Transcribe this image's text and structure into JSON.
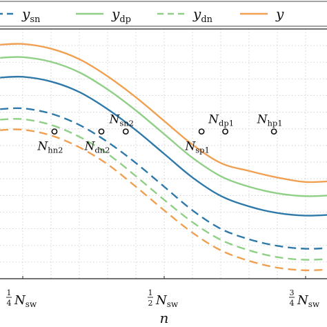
{
  "chart_data": {
    "type": "line",
    "title": "",
    "xlabel": "n",
    "ylabel": "",
    "grid": true,
    "legend_position": "top",
    "x_ticks": [
      {
        "x": 0.25,
        "label_num": "1",
        "label_den": "4",
        "label_var": "N",
        "label_sub": "sw"
      },
      {
        "x": 0.5,
        "label_num": "1",
        "label_den": "2",
        "label_var": "N",
        "label_sub": "sw"
      },
      {
        "x": 0.75,
        "label_num": "3",
        "label_den": "4",
        "label_var": "N",
        "label_sub": "sw"
      }
    ],
    "legend": [
      {
        "series": "y_sn",
        "name": "y",
        "sub": "sn"
      },
      {
        "series": "y_dp",
        "name": "y",
        "sub": "dp"
      },
      {
        "series": "y_dn",
        "name": "y",
        "sub": "dn"
      },
      {
        "series": "y_hp",
        "name": "y",
        "sub": ""
      }
    ],
    "series": [
      {
        "id": "y_hp",
        "color": "#f0a050",
        "dash": false,
        "x": [
          0.21,
          0.25,
          0.3,
          0.35,
          0.4,
          0.45,
          0.5,
          0.55,
          0.6,
          0.65,
          0.7,
          0.75,
          0.8
        ],
        "y": [
          0.89,
          0.893,
          0.875,
          0.835,
          0.77,
          0.69,
          0.6,
          0.51,
          0.44,
          0.41,
          0.385,
          0.368,
          0.372
        ]
      },
      {
        "id": "y_dp",
        "color": "#8fcf86",
        "dash": false,
        "x": [
          0.21,
          0.25,
          0.3,
          0.35,
          0.4,
          0.45,
          0.5,
          0.55,
          0.6,
          0.65,
          0.7,
          0.75,
          0.8
        ],
        "y": [
          0.84,
          0.843,
          0.825,
          0.785,
          0.72,
          0.64,
          0.55,
          0.46,
          0.39,
          0.35,
          0.325,
          0.314,
          0.318
        ]
      },
      {
        "id": "y_sn_solid",
        "color": "#2e79a9",
        "dash": false,
        "x": [
          0.21,
          0.25,
          0.3,
          0.35,
          0.4,
          0.45,
          0.5,
          0.55,
          0.6,
          0.65,
          0.7,
          0.75,
          0.8
        ],
        "y": [
          0.765,
          0.768,
          0.75,
          0.71,
          0.645,
          0.565,
          0.475,
          0.385,
          0.315,
          0.275,
          0.25,
          0.24,
          0.244
        ]
      },
      {
        "id": "y_sn",
        "color": "#2e79a9",
        "dash": true,
        "x": [
          0.21,
          0.25,
          0.3,
          0.35,
          0.4,
          0.45,
          0.5,
          0.55,
          0.6,
          0.65,
          0.7,
          0.75,
          0.8
        ],
        "y": [
          0.645,
          0.648,
          0.628,
          0.585,
          0.52,
          0.44,
          0.35,
          0.26,
          0.19,
          0.15,
          0.125,
          0.114,
          0.118
        ]
      },
      {
        "id": "y_dn",
        "color": "#8fcf86",
        "dash": true,
        "x": [
          0.21,
          0.25,
          0.3,
          0.35,
          0.4,
          0.45,
          0.5,
          0.55,
          0.6,
          0.65,
          0.7,
          0.75,
          0.8
        ],
        "y": [
          0.605,
          0.607,
          0.585,
          0.54,
          0.475,
          0.39,
          0.3,
          0.215,
          0.148,
          0.108,
          0.082,
          0.072,
          0.076
        ]
      },
      {
        "id": "y_hn",
        "color": "#f0a050",
        "dash": true,
        "x": [
          0.21,
          0.25,
          0.3,
          0.35,
          0.4,
          0.45,
          0.5,
          0.55,
          0.6,
          0.65,
          0.7,
          0.75,
          0.8
        ],
        "y": [
          0.565,
          0.567,
          0.545,
          0.5,
          0.435,
          0.35,
          0.26,
          0.175,
          0.108,
          0.068,
          0.042,
          0.032,
          0.036
        ]
      }
    ],
    "crossing_level": 0.56,
    "annotations": [
      {
        "x": 0.306,
        "var": "N",
        "sub": "hn2",
        "position": "below"
      },
      {
        "x": 0.389,
        "var": "N",
        "sub": "dn2",
        "position": "below"
      },
      {
        "x": 0.432,
        "var": "N",
        "sub": "sn2",
        "position": "above"
      },
      {
        "x": 0.566,
        "var": "N",
        "sub": "sp1",
        "position": "below"
      },
      {
        "x": 0.608,
        "var": "N",
        "sub": "dp1",
        "position": "above"
      },
      {
        "x": 0.694,
        "var": "N",
        "sub": "hp1",
        "position": "above"
      }
    ],
    "xlim": [
      0.21,
      0.78
    ],
    "ylim": [
      0.0,
      0.95
    ]
  }
}
